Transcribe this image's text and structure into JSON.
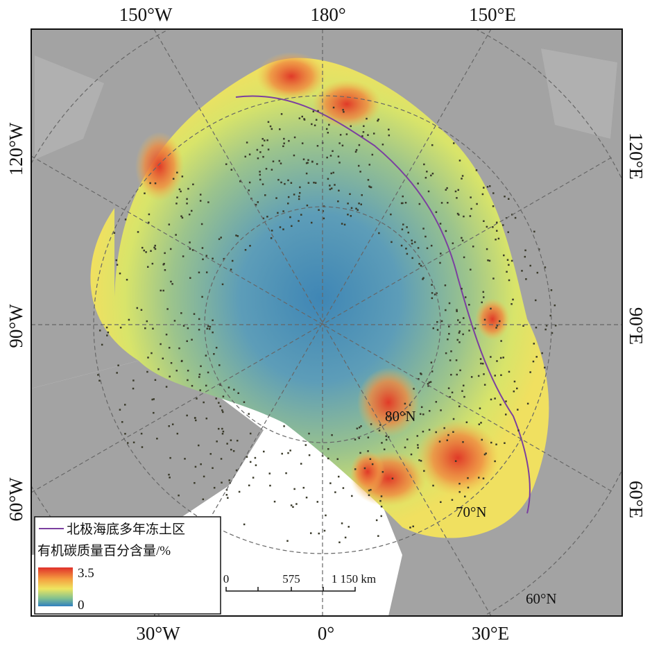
{
  "map": {
    "top_labels": [
      "150°W",
      "180°",
      "150°E"
    ],
    "bottom_labels": [
      "30°W",
      "0°",
      "30°E"
    ],
    "left_labels": [
      "120°W",
      "90°W",
      "60°W"
    ],
    "right_labels": [
      "120°E",
      "90°E",
      "60°E"
    ],
    "latitude_labels": [
      "80°N",
      "70°N",
      "60°N"
    ]
  },
  "legend": {
    "line_label": "北极海底多年冻土区",
    "colorbar_title": "有机碳质量百分含量/%",
    "colorbar_max": "3.5",
    "colorbar_min": "0"
  },
  "scale_bar": {
    "labels": [
      "0",
      "575",
      "1 150 km"
    ]
  }
}
